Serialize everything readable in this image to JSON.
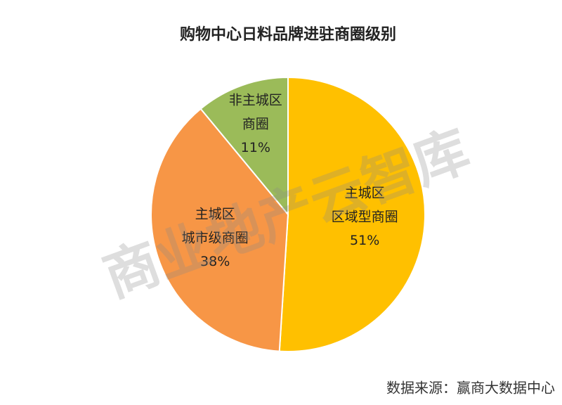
{
  "chart_data": {
    "type": "pie",
    "title": "购物中心日料品牌进驻商圈级别",
    "categories": [
      "主城区\n区域型商圈",
      "主城区\n城市级商圈",
      "非主城区\n商圈"
    ],
    "values": [
      51,
      38,
      11
    ],
    "value_labels": [
      "51%",
      "38%",
      "11%"
    ],
    "colors": [
      "#FFC000",
      "#F79646",
      "#9BBB59"
    ],
    "watermark": "商业地产云智库",
    "source": "数据来源：赢商大数据中心"
  }
}
